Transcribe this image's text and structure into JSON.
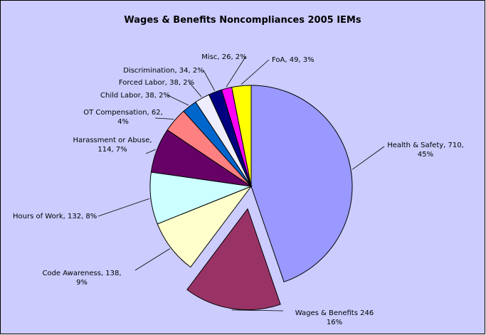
{
  "chart_data": {
    "type": "pie",
    "title": "Wages & Benefits Noncompliances 2005 IEMs",
    "values": [
      710,
      246,
      138,
      132,
      114,
      62,
      38,
      38,
      34,
      26,
      49
    ],
    "value_labels": [
      "Health & Safety, 710,\n45%",
      "Wages & Benefits 246\n16%",
      "Code Awareness, 138,\n9%",
      "Hours of Work, 132, 8%",
      "Harassment or Abuse,\n114, 7%",
      "OT Compensation, 62,\n4%",
      "Child Labor, 38, 2%",
      "Forced Labor, 38, 2%",
      "Discrimination, 34, 2%",
      "Misc, 26, 2%",
      "FoA, 49, 3%"
    ],
    "colors": [
      "#9999FF",
      "#993366",
      "#FFFFCC",
      "#CCFFFF",
      "#660066",
      "#FF8080",
      "#0066CC",
      "#EEEEFF",
      "#000080",
      "#FF00FF",
      "#FFFF00"
    ],
    "exploded": [
      1
    ]
  }
}
